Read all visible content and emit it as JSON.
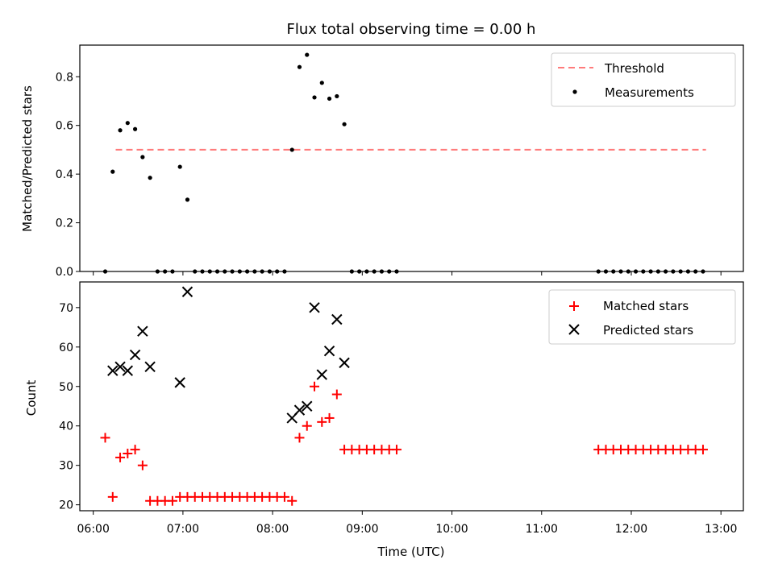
{
  "chart_data": [
    {
      "type": "scatter",
      "title": "Flux total observing time = 0.00 h",
      "ylabel": "Matched/Predicted stars",
      "ylim": [
        0,
        0.93
      ],
      "yticks": [
        "0.0",
        "0.2",
        "0.4",
        "0.6",
        "0.8"
      ],
      "legend_position": "top-right",
      "threshold": {
        "name": "Threshold",
        "y": 0.5,
        "x_range": [
          "06:15",
          "12:50"
        ],
        "color": "#ff7b7b",
        "style": "dashed"
      },
      "series": [
        {
          "name": "Measurements",
          "color": "#000000",
          "marker": "dot",
          "x": [
            "06:08",
            "06:13",
            "06:18",
            "06:23",
            "06:28",
            "06:33",
            "06:38",
            "06:43",
            "06:48",
            "06:53",
            "06:58",
            "07:03",
            "07:08",
            "07:13",
            "07:18",
            "07:23",
            "07:28",
            "07:33",
            "07:38",
            "07:43",
            "07:48",
            "07:53",
            "07:58",
            "08:03",
            "08:08",
            "08:13",
            "08:18",
            "08:23",
            "08:28",
            "08:33",
            "08:38",
            "08:43",
            "08:48",
            "08:53",
            "08:58",
            "09:03",
            "09:08",
            "09:13",
            "09:18",
            "09:23",
            "11:38",
            "11:43",
            "11:48",
            "11:53",
            "11:58",
            "12:03",
            "12:08",
            "12:13",
            "12:18",
            "12:23",
            "12:28",
            "12:33",
            "12:38",
            "12:43",
            "12:48"
          ],
          "y": [
            0.0,
            0.41,
            0.58,
            0.61,
            0.585,
            0.47,
            0.385,
            0.0,
            0.0,
            0.0,
            0.43,
            0.295,
            0.0,
            0.0,
            0.0,
            0.0,
            0.0,
            0.0,
            0.0,
            0.0,
            0.0,
            0.0,
            0.0,
            0.0,
            0.0,
            0.5,
            0.84,
            0.89,
            0.715,
            0.775,
            0.71,
            0.72,
            0.605,
            0.0,
            0.0,
            0.0,
            0.0,
            0.0,
            0.0,
            0.0,
            0.0,
            0.0,
            0.0,
            0.0,
            0.0,
            0.0,
            0.0,
            0.0,
            0.0,
            0.0,
            0.0,
            0.0,
            0.0,
            0.0,
            0.0
          ]
        }
      ]
    },
    {
      "type": "scatter",
      "xlabel": "Time (UTC)",
      "ylabel": "Count",
      "ylim": [
        18.5,
        76.5
      ],
      "yticks": [
        "20",
        "30",
        "40",
        "50",
        "60",
        "70"
      ],
      "xticks": [
        "06:00",
        "07:00",
        "08:00",
        "09:00",
        "10:00",
        "11:00",
        "12:00",
        "13:00"
      ],
      "legend_position": "top-right",
      "series": [
        {
          "name": "Matched stars",
          "color": "#ff0000",
          "marker": "plus",
          "x": [
            "06:08",
            "06:13",
            "06:18",
            "06:23",
            "06:28",
            "06:33",
            "06:38",
            "06:43",
            "06:48",
            "06:53",
            "06:58",
            "07:03",
            "07:08",
            "07:13",
            "07:18",
            "07:23",
            "07:28",
            "07:33",
            "07:38",
            "07:43",
            "07:48",
            "07:53",
            "07:58",
            "08:03",
            "08:08",
            "08:13",
            "08:18",
            "08:23",
            "08:28",
            "08:33",
            "08:38",
            "08:43",
            "08:48",
            "08:53",
            "08:58",
            "09:03",
            "09:08",
            "09:13",
            "09:18",
            "09:23",
            "11:38",
            "11:43",
            "11:48",
            "11:53",
            "11:58",
            "12:03",
            "12:08",
            "12:13",
            "12:18",
            "12:23",
            "12:28",
            "12:33",
            "12:38",
            "12:43",
            "12:48"
          ],
          "y": [
            37,
            22,
            32,
            33,
            34,
            30,
            21,
            21,
            21,
            21,
            22,
            22,
            22,
            22,
            22,
            22,
            22,
            22,
            22,
            22,
            22,
            22,
            22,
            22,
            22,
            21,
            37,
            40,
            50,
            41,
            42,
            48,
            34,
            34,
            34,
            34,
            34,
            34,
            34,
            34,
            34,
            34,
            34,
            34,
            34,
            34,
            34,
            34,
            34,
            34,
            34,
            34,
            34,
            34,
            34
          ]
        },
        {
          "name": "Predicted stars",
          "color": "#000000",
          "marker": "x",
          "x": [
            "06:13",
            "06:18",
            "06:23",
            "06:28",
            "06:33",
            "06:38",
            "06:58",
            "07:03",
            "08:13",
            "08:18",
            "08:23",
            "08:28",
            "08:33",
            "08:38",
            "08:43",
            "08:48"
          ],
          "y": [
            54,
            55,
            54,
            58,
            64,
            55,
            51,
            74,
            42,
            44,
            45,
            70,
            53,
            59,
            67,
            56
          ]
        }
      ]
    }
  ]
}
